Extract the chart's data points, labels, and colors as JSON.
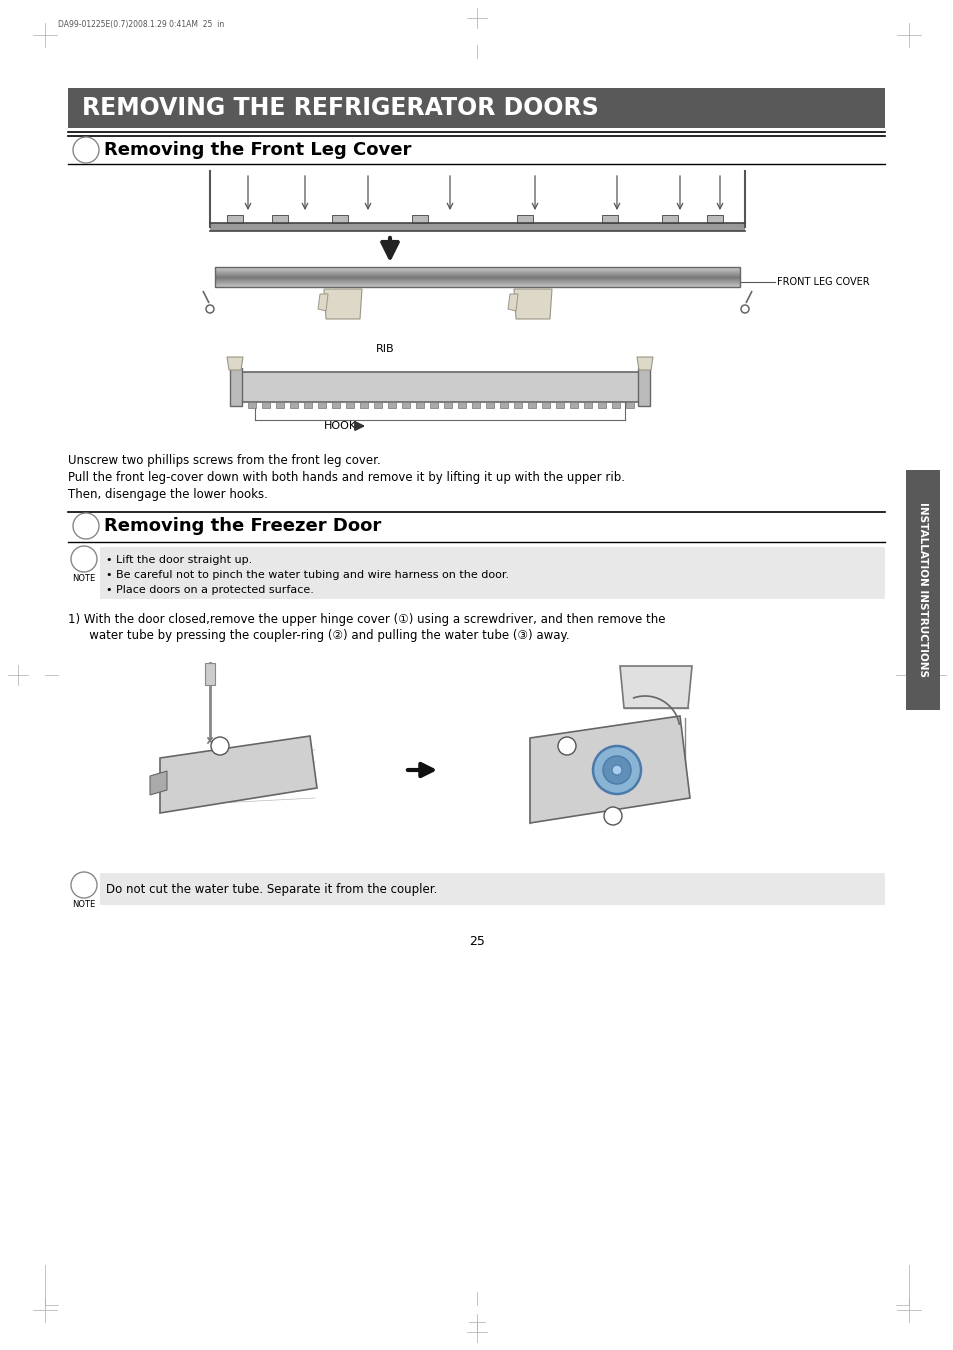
{
  "title": "REMOVING THE REFRIGERATOR DOORS",
  "title_bg": "#595959",
  "title_color": "#FFFFFF",
  "section1_title": "Removing the Front Leg Cover",
  "section2_title": "Removing the Freezer Door",
  "body_text1": "Unscrew two phillips screws from the front leg cover.",
  "body_text2": "Pull the front leg-cover down with both hands and remove it by lifting it up with the upper rib.",
  "body_text3": "Then, disengage the lower hooks.",
  "note1_lines": [
    "• Lift the door straight up.",
    "• Be careful not to pinch the water tubing and wire harness on the door.",
    "• Place doors on a protected surface."
  ],
  "note2_text": "Do not cut the water tube. Separate it from the coupler.",
  "page_number": "25",
  "sidebar_text": "INSTALLATION INSTRUCTIONS",
  "header_text": "DA99-01225E(0.7)2008.1.29 0:41AM  25  in",
  "label_front_leg": "FRONT LEG COVER",
  "label_rib": "RIB",
  "label_hook": "HOOK",
  "note_bg": "#E8E8E8",
  "sidebar_bg": "#595959",
  "step1_line1": "1) With the door closed,remove the upper hinge cover (①) using a screwdriver, and then remove the",
  "step1_line2": "   water tube by pressing the coupler-ring (②) and pulling the water tube (③) away."
}
